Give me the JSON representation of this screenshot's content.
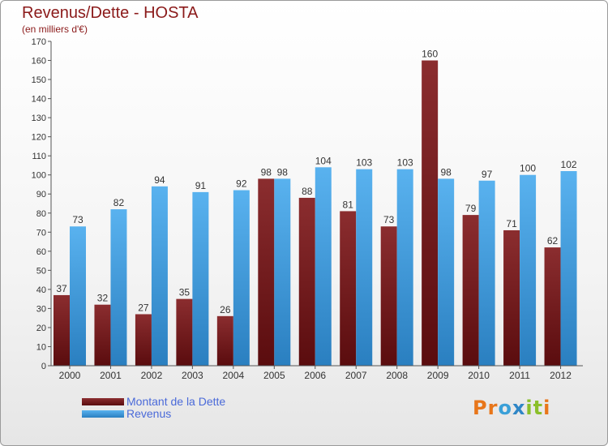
{
  "title": "Revenus/Dette - HOSTA",
  "subtitle": "(en milliers d'€)",
  "colors": {
    "dette_top": "#8b2d2f",
    "dette_bottom": "#5a0c0e",
    "revenus_top": "#59b2ef",
    "revenus_bottom": "#2a7fc0",
    "axis": "#555555",
    "grid": "#cccccc"
  },
  "chart_data": {
    "type": "bar",
    "title": "Revenus/Dette - HOSTA",
    "ylabel": "(en milliers d'€)",
    "xlabel": "",
    "ylim": [
      0,
      170
    ],
    "yticks": [
      0,
      10,
      20,
      30,
      40,
      50,
      60,
      70,
      80,
      90,
      100,
      110,
      120,
      130,
      140,
      150,
      160,
      170
    ],
    "grid": false,
    "legend_position": "bottom-left",
    "categories": [
      "2000",
      "2001",
      "2002",
      "2003",
      "2004",
      "2005",
      "2006",
      "2007",
      "2008",
      "2009",
      "2010",
      "2011",
      "2012"
    ],
    "series": [
      {
        "name": "Montant de la Dette",
        "values": [
          37,
          32,
          27,
          35,
          26,
          98,
          88,
          81,
          73,
          160,
          79,
          71,
          62
        ]
      },
      {
        "name": "Revenus",
        "values": [
          73,
          82,
          94,
          91,
          92,
          98,
          104,
          103,
          103,
          98,
          97,
          100,
          102
        ]
      }
    ]
  },
  "logo": {
    "text": "Proxiti",
    "letters": [
      "P",
      "r",
      "o",
      "x",
      "i",
      "t",
      "i"
    ],
    "colors": [
      "#e8761a",
      "#e8761a",
      "#3aa0d8",
      "#2f86c6",
      "#8bbf2a",
      "#8bbf2a",
      "#e8761a"
    ]
  }
}
